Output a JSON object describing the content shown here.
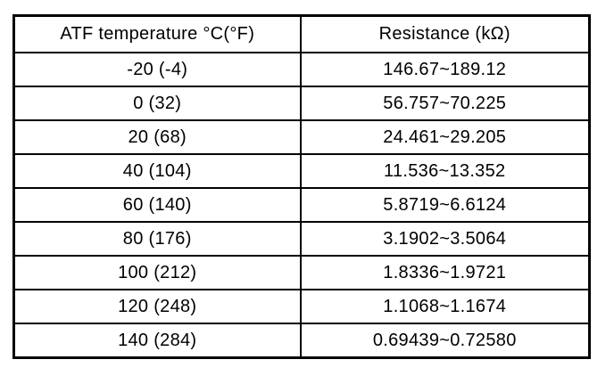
{
  "table": {
    "headers": [
      "ATF temperature °C(°F)",
      "Resistance (kΩ)"
    ],
    "rows": [
      [
        "-20 (-4)",
        "146.67~189.12"
      ],
      [
        "0 (32)",
        "56.757~70.225"
      ],
      [
        "20 (68)",
        "24.461~29.205"
      ],
      [
        "40 (104)",
        "11.536~13.352"
      ],
      [
        "60 (140)",
        "5.8719~6.6124"
      ],
      [
        "80 (176)",
        "3.1902~3.5064"
      ],
      [
        "100 (212)",
        "1.8336~1.9721"
      ],
      [
        "120 (248)",
        "1.1068~1.1674"
      ],
      [
        "140 (284)",
        "0.69439~0.72580"
      ]
    ]
  },
  "colors": {
    "border": "#000000",
    "background": "#ffffff",
    "text": "#000000"
  }
}
